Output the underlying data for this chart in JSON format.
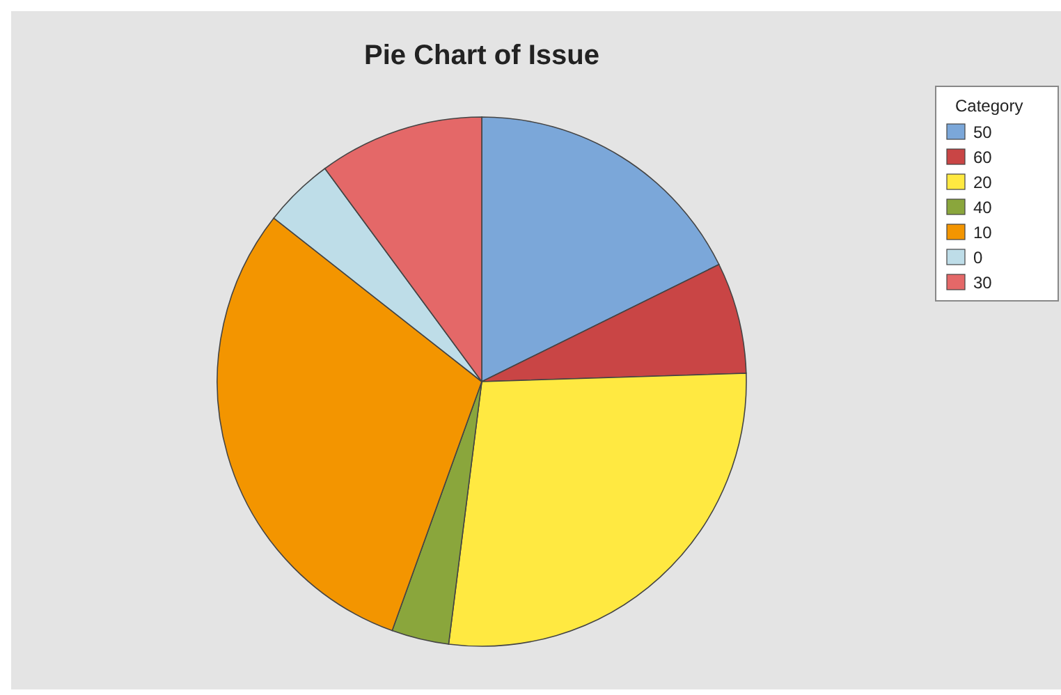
{
  "chart_data": {
    "type": "pie",
    "title": "Pie Chart of Issue",
    "legend_title": "Category",
    "legend": "top right",
    "categories": [
      "50",
      "60",
      "20",
      "40",
      "10",
      "0",
      "30"
    ],
    "values": [
      17.7,
      6.8,
      27.5,
      3.5,
      30.1,
      4.3,
      10.1
    ],
    "colors": [
      "#7ba7d9",
      "#c94545",
      "#ffe941",
      "#8aa63c",
      "#f39500",
      "#bedde8",
      "#e46868"
    ]
  }
}
